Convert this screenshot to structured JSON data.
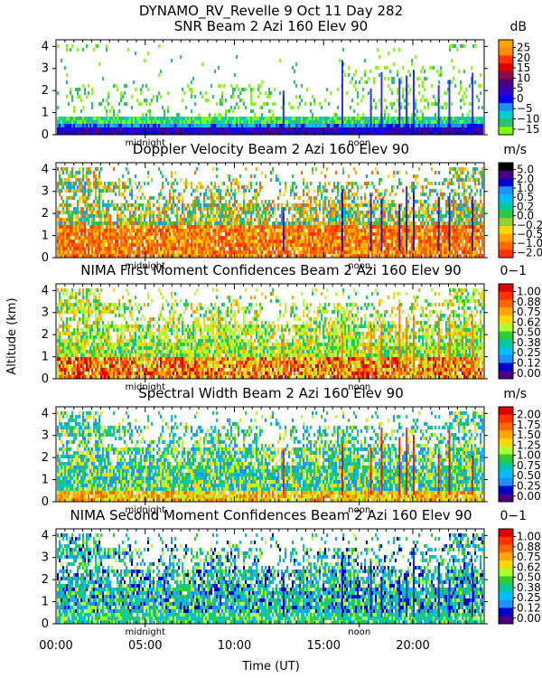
{
  "figure": {
    "title_line1": "DYNAMO_RV_Revelle    9 Oct 11 Day 282",
    "ylabel": "Altitude (km)",
    "xlabel": "Time (UT)",
    "x_ticks": [
      "00:00",
      "05:00",
      "10:00",
      "15:00",
      "20:00"
    ],
    "x_tick_hours": [
      0,
      5,
      10,
      15,
      20
    ],
    "midnight_label": "midnight",
    "midnight_hour": 5,
    "noon_label": "noon",
    "noon_hour": 17
  },
  "chart_data": [
    {
      "type": "heatmap",
      "title": "SNR Beam 2 Azi 160 Elev 90",
      "units": "dB",
      "xlabel": "Time (UT)",
      "ylabel": "Altitude (km)",
      "xlim": [
        0,
        24
      ],
      "ylim": [
        0,
        4.3
      ],
      "y_ticks": [
        0,
        1,
        2,
        3,
        4
      ],
      "colorbar_ticks": [
        "25",
        "20",
        "15",
        "10",
        "5",
        "0",
        "−5",
        "−10",
        "−15"
      ],
      "colorbar_colors": [
        "#ffa500",
        "#ff8c00",
        "#ff3300",
        "#dd0000",
        "#8b0a50",
        "#4b0082",
        "#3300cc",
        "#0000ff",
        "#1e90ff",
        "#00ced1",
        "#2fbf71",
        "#7fff00"
      ],
      "pattern": "snr"
    },
    {
      "type": "heatmap",
      "title": "Doppler Velocity Beam 2 Azi 160 Elev 90",
      "units": "m/s",
      "xlabel": "Time (UT)",
      "ylabel": "Altitude (km)",
      "xlim": [
        0,
        24
      ],
      "ylim": [
        0,
        4.3
      ],
      "y_ticks": [
        0,
        1,
        2,
        3,
        4
      ],
      "colorbar_ticks": [
        "5.0",
        "2.0",
        "1.0",
        "0.5",
        "0.2",
        "0.0",
        "−0.2",
        "−0.5",
        "−1.0",
        "−2.0"
      ],
      "colorbar_colors": [
        "#000000",
        "#4b0082",
        "#0000cd",
        "#1e90ff",
        "#00bfff",
        "#00c8a0",
        "#2ec940",
        "#9acd32",
        "#ffd700",
        "#ffa500",
        "#ff6600",
        "#ff3300"
      ],
      "pattern": "doppler"
    },
    {
      "type": "heatmap",
      "title": "NIMA First Moment Confidences Beam 2 Azi 160 Elev 90",
      "units": "0−1",
      "xlabel": "Time (UT)",
      "ylabel": "Altitude (km)",
      "xlim": [
        0,
        24
      ],
      "ylim": [
        0,
        4.3
      ],
      "y_ticks": [
        0,
        1,
        2,
        3,
        4
      ],
      "colorbar_ticks": [
        "1.00",
        "0.88",
        "0.75",
        "0.62",
        "0.50",
        "0.38",
        "0.25",
        "0.12",
        "0.00"
      ],
      "colorbar_colors": [
        "#dd0000",
        "#ff3300",
        "#ff6600",
        "#ffa500",
        "#ffd700",
        "#adff2f",
        "#32cd32",
        "#00c8a0",
        "#00bfff",
        "#1e90ff",
        "#0000cd",
        "#4b0082"
      ],
      "pattern": "conf1"
    },
    {
      "type": "heatmap",
      "title": "Spectral Width Beam 2 Azi 160 Elev 90",
      "units": "m/s",
      "xlabel": "Time (UT)",
      "ylabel": "Altitude (km)",
      "xlim": [
        0,
        24
      ],
      "ylim": [
        0,
        4.3
      ],
      "y_ticks": [
        0,
        1,
        2,
        3,
        4
      ],
      "colorbar_ticks": [
        "2.00",
        "1.75",
        "1.50",
        "1.25",
        "1.00",
        "0.75",
        "0.50",
        "0.25",
        "0.00"
      ],
      "colorbar_colors": [
        "#dd0000",
        "#ff3300",
        "#ff6600",
        "#ffa500",
        "#ffd700",
        "#adff2f",
        "#32cd32",
        "#00c8a0",
        "#00bfff",
        "#1e90ff",
        "#0000cd",
        "#4b0082"
      ],
      "pattern": "width"
    },
    {
      "type": "heatmap",
      "title": "NIMA Second Moment Confidences Beam 2 Azi 160 Elev 90",
      "units": "0−1",
      "xlabel": "Time (UT)",
      "ylabel": "Altitude (km)",
      "xlim": [
        0,
        24
      ],
      "ylim": [
        0,
        4.3
      ],
      "y_ticks": [
        0,
        1,
        2,
        3,
        4
      ],
      "colorbar_ticks": [
        "1.00",
        "0.88",
        "0.75",
        "0.62",
        "0.50",
        "0.38",
        "0.25",
        "0.12",
        "0.00"
      ],
      "colorbar_colors": [
        "#dd0000",
        "#ff3300",
        "#ff6600",
        "#ffa500",
        "#ffd700",
        "#adff2f",
        "#32cd32",
        "#00c8a0",
        "#00bfff",
        "#1e90ff",
        "#0000cd",
        "#4b0082"
      ],
      "pattern": "conf2"
    }
  ]
}
